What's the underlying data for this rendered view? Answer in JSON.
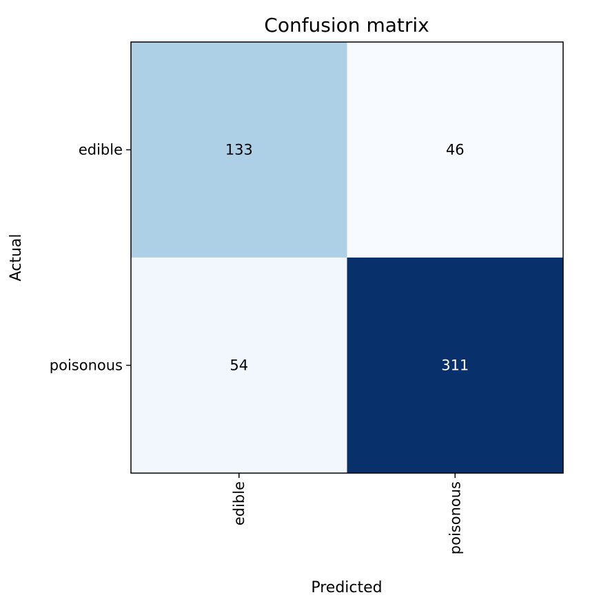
{
  "chart_data": {
    "type": "heatmap",
    "title": "Confusion matrix",
    "xlabel": "Predicted",
    "ylabel": "Actual",
    "x_categories": [
      "edible",
      "poisonous"
    ],
    "y_categories": [
      "edible",
      "poisonous"
    ],
    "values": [
      [
        133,
        46
      ],
      [
        54,
        311
      ]
    ],
    "colormap": "Blues",
    "color_low": "#f7fbff",
    "color_high": "#08306b",
    "text_color_dark": "#000000",
    "text_color_light": "#ffffff",
    "grid": false
  }
}
